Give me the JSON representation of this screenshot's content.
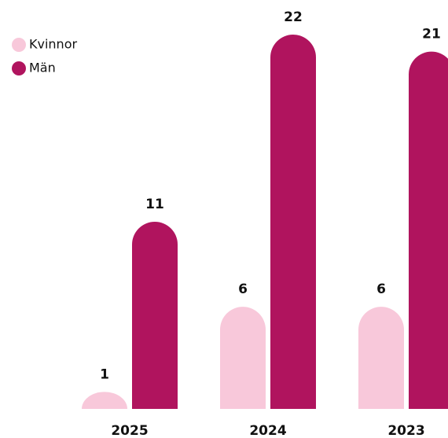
{
  "chart_data": {
    "type": "bar",
    "categories": [
      "2025",
      "2024",
      "2023"
    ],
    "series": [
      {
        "name": "Kvinnor",
        "color": "#f8c8da",
        "values": [
          1,
          6,
          6
        ]
      },
      {
        "name": "Män",
        "color": "#b0145e",
        "values": [
          11,
          22,
          21
        ]
      }
    ],
    "legend": "top-left"
  }
}
